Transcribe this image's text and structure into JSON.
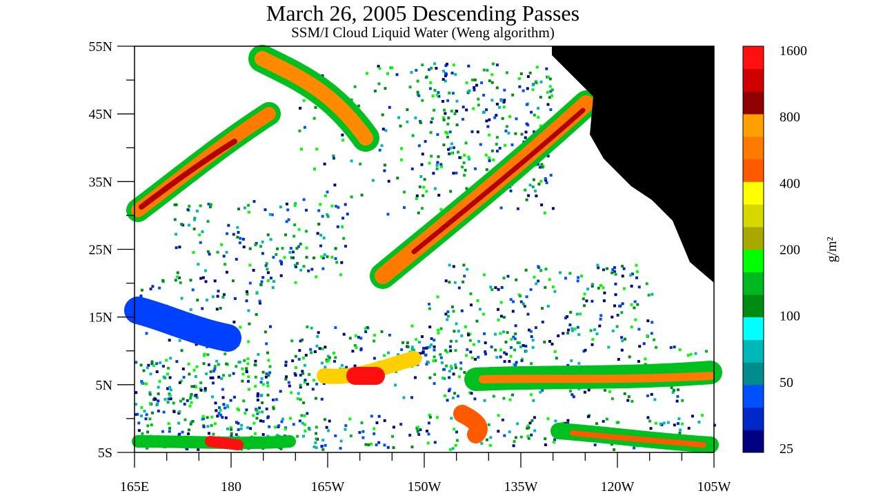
{
  "header": {
    "title": "March 26, 2005  Descending Passes",
    "subtitle": "SSM/I Cloud Liquid Water (Weng algorithm)"
  },
  "map": {
    "lat_labels": [
      "55N",
      "45N",
      "35N",
      "25N",
      "15N",
      "5N",
      "5S"
    ],
    "lon_labels": [
      "165E",
      "180",
      "165W",
      "150W",
      "135W",
      "120W",
      "105W"
    ]
  },
  "colorbar": {
    "labels": [
      "25",
      "50",
      "100",
      "200",
      "400",
      "800",
      "1600"
    ],
    "unit": "g/m²",
    "colors": [
      "#000080",
      "#0028c8",
      "#0050ff",
      "#008c8c",
      "#00b8b8",
      "#00ffff",
      "#008c10",
      "#00b820",
      "#00ff00",
      "#a8a800",
      "#d8d800",
      "#ffff00",
      "#ff5a00",
      "#ff7a00",
      "#ffa000",
      "#900000",
      "#d00000",
      "#ff1010"
    ]
  }
}
